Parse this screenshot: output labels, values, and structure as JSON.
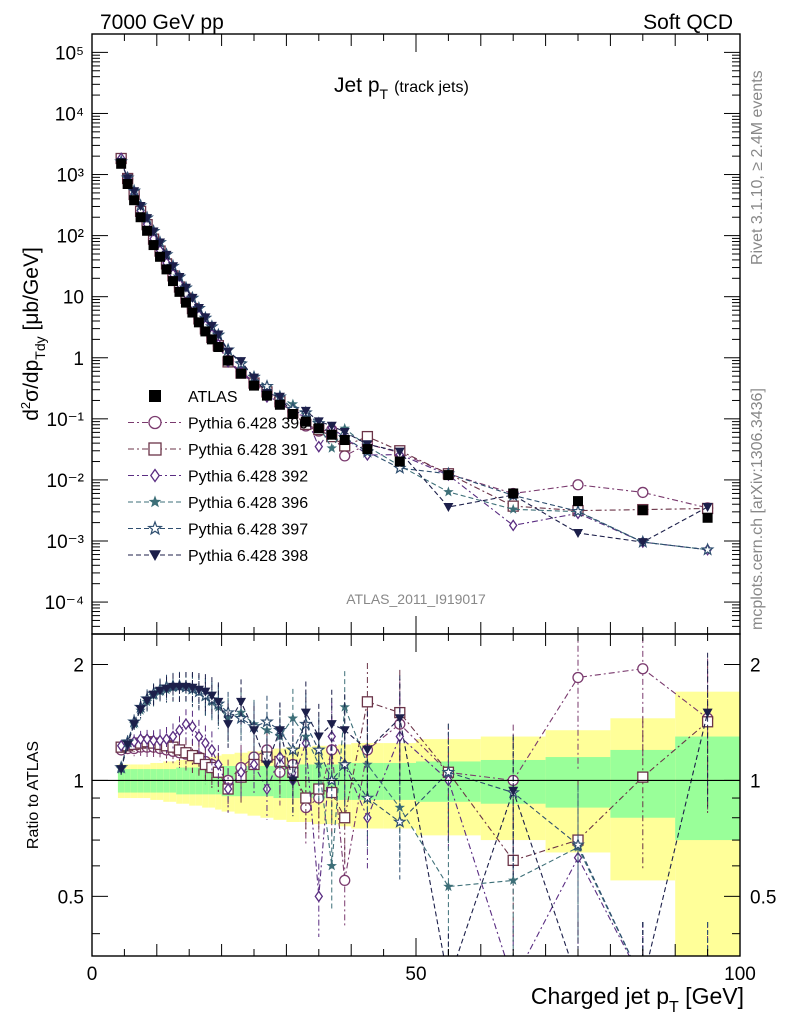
{
  "header": {
    "left": "7000 GeV pp",
    "right": "Soft QCD"
  },
  "side_labels": {
    "rivet": "Rivet 3.1.10, ≥ 2.4M events",
    "mcplots": "mcplots.cern.ch [arXiv:1306.3436]"
  },
  "main_plot": {
    "title_main": "Jet p",
    "title_sub": "T",
    "title_extra": "(track jets)",
    "analysis_label": "ATLAS_2011_I919017",
    "ylabel_parts": [
      "d",
      "2",
      "σ/dp",
      "T",
      "dy",
      " [μb/GeV]"
    ],
    "ytick_labels": [
      "10⁻⁴",
      "10⁻³",
      "10⁻²",
      "10⁻¹",
      "1",
      "10",
      "10²",
      "10³",
      "10⁴",
      "10⁵"
    ]
  },
  "ratio_plot": {
    "ylabel": "Ratio to ATLAS",
    "ytick_labels": [
      "0.5",
      "1",
      "2"
    ]
  },
  "xaxis": {
    "label_main": "Charged jet p",
    "label_sub": "T",
    "label_unit": " [GeV]",
    "tick_labels": [
      "0",
      "50",
      "100"
    ]
  },
  "chart_data": {
    "type": "scatter",
    "x_log": false,
    "y_log": true,
    "xlim": [
      0,
      100
    ],
    "ylim": [
      3e-05,
      200000
    ],
    "ratio_ylim": [
      0.35,
      2.4
    ],
    "ratio_y_log": true,
    "x": [
      4.5,
      5.5,
      6.5,
      7.5,
      8.5,
      9.5,
      10.5,
      11.5,
      12.5,
      13.5,
      14.5,
      15.5,
      16.5,
      17.5,
      18.5,
      19.5,
      21,
      23,
      25,
      27,
      29,
      31,
      33,
      35,
      37,
      39,
      42.5,
      47.5,
      55,
      65,
      75,
      85,
      95
    ],
    "band_edges": [
      4,
      5,
      6,
      7,
      8,
      9,
      10,
      11,
      12,
      13,
      14,
      15,
      16,
      17,
      18,
      19,
      20,
      22,
      24,
      26,
      28,
      30,
      32,
      34,
      36,
      38,
      40,
      45,
      50,
      60,
      70,
      80,
      90,
      100
    ],
    "band_inner": [
      0.07,
      0.07,
      0.07,
      0.07,
      0.07,
      0.07,
      0.07,
      0.07,
      0.07,
      0.08,
      0.08,
      0.08,
      0.08,
      0.08,
      0.08,
      0.08,
      0.09,
      0.09,
      0.09,
      0.09,
      0.1,
      0.1,
      0.1,
      0.1,
      0.1,
      0.11,
      0.11,
      0.11,
      0.12,
      0.13,
      0.15,
      0.2,
      0.3
    ],
    "band_outer": [
      0.1,
      0.1,
      0.1,
      0.1,
      0.1,
      0.11,
      0.11,
      0.12,
      0.12,
      0.13,
      0.13,
      0.14,
      0.14,
      0.15,
      0.15,
      0.16,
      0.17,
      0.18,
      0.19,
      0.2,
      0.21,
      0.22,
      0.22,
      0.23,
      0.23,
      0.24,
      0.25,
      0.25,
      0.28,
      0.3,
      0.35,
      0.45,
      0.7
    ],
    "series": [
      {
        "name": "ATLAS",
        "marker": "filled-square",
        "color": "#000000",
        "line": false,
        "values": [
          1500,
          700,
          380,
          200,
          120,
          70,
          45,
          28,
          18,
          12,
          8,
          5.5,
          3.8,
          2.7,
          2.0,
          1.5,
          0.9,
          0.55,
          0.35,
          0.24,
          0.17,
          0.12,
          0.09,
          0.07,
          0.055,
          0.045,
          0.032,
          0.02,
          0.012,
          0.006,
          0.0045,
          0.0032,
          0.0024
        ]
      },
      {
        "name": "Pythia 6.428 390",
        "marker": "open-circle",
        "color": "#7a3a6e",
        "dash": "6,3,2,3",
        "ratio": [
          1.2,
          1.21,
          1.21,
          1.22,
          1.22,
          1.22,
          1.21,
          1.2,
          1.19,
          1.18,
          1.17,
          1.16,
          1.15,
          1.12,
          1.1,
          1.05,
          1.0,
          1.08,
          1.15,
          1.2,
          1.05,
          1.1,
          0.85,
          0.9,
          1.2,
          0.55,
          1.2,
          1.4,
          1.05,
          1.0,
          1.85,
          1.95,
          1.45
        ]
      },
      {
        "name": "Pythia 6.428 391",
        "marker": "open-square",
        "color": "#6b3448",
        "dash": "6,3,2,3",
        "ratio": [
          1.22,
          1.23,
          1.24,
          1.25,
          1.26,
          1.25,
          1.24,
          1.23,
          1.22,
          1.2,
          1.18,
          1.16,
          1.14,
          1.1,
          1.08,
          1.05,
          0.95,
          1.02,
          1.1,
          1.15,
          1.12,
          1.05,
          0.9,
          0.95,
          0.93,
          0.8,
          1.6,
          1.5,
          1.05,
          0.62,
          0.7,
          1.02,
          1.42
        ]
      },
      {
        "name": "Pythia 6.428 392",
        "marker": "open-diamond",
        "color": "#5a2d82",
        "dash": "6,3,2,3",
        "ratio": [
          1.23,
          1.24,
          1.26,
          1.28,
          1.28,
          1.27,
          1.27,
          1.28,
          1.3,
          1.35,
          1.4,
          1.38,
          1.3,
          1.25,
          1.2,
          1.1,
          0.95,
          1.05,
          1.1,
          0.95,
          1.15,
          1.0,
          1.25,
          0.5,
          1.3,
          1.1,
          0.8,
          1.3,
          1.0,
          0.3,
          0.63,
          0.3,
          0.3
        ]
      },
      {
        "name": "Pythia 6.428 396",
        "marker": "filled-star",
        "color": "#3d6f78",
        "dash": "5,3",
        "ratio": [
          1.07,
          1.25,
          1.4,
          1.52,
          1.6,
          1.66,
          1.7,
          1.72,
          1.74,
          1.75,
          1.74,
          1.72,
          1.7,
          1.65,
          1.6,
          1.55,
          1.45,
          1.5,
          1.4,
          1.35,
          1.3,
          1.45,
          1.3,
          1.1,
          0.6,
          1.55,
          1.1,
          0.85,
          0.53,
          0.55,
          0.67,
          0.3,
          0.3
        ]
      },
      {
        "name": "Pythia 6.428 397",
        "marker": "open-star",
        "color": "#2e4e6f",
        "dash": "5,3",
        "ratio": [
          1.08,
          1.26,
          1.42,
          1.55,
          1.63,
          1.68,
          1.72,
          1.75,
          1.76,
          1.76,
          1.75,
          1.73,
          1.7,
          1.66,
          1.62,
          1.58,
          1.5,
          1.45,
          1.38,
          1.42,
          1.35,
          1.2,
          1.4,
          1.2,
          1.0,
          1.1,
          0.9,
          0.78,
          1.05,
          0.93,
          0.68,
          0.3,
          0.3
        ]
      },
      {
        "name": "Pythia 6.428 398",
        "marker": "filled-triangle-down",
        "color": "#1c1f4a",
        "dash": "5,3",
        "ratio": [
          1.07,
          1.24,
          1.4,
          1.53,
          1.61,
          1.67,
          1.71,
          1.73,
          1.75,
          1.75,
          1.75,
          1.74,
          1.72,
          1.7,
          1.66,
          1.6,
          1.4,
          1.6,
          1.35,
          1.1,
          1.35,
          1.0,
          1.5,
          1.3,
          1.4,
          1.35,
          1.2,
          1.45,
          0.3,
          0.94,
          0.3,
          0.3,
          1.5
        ]
      }
    ]
  }
}
